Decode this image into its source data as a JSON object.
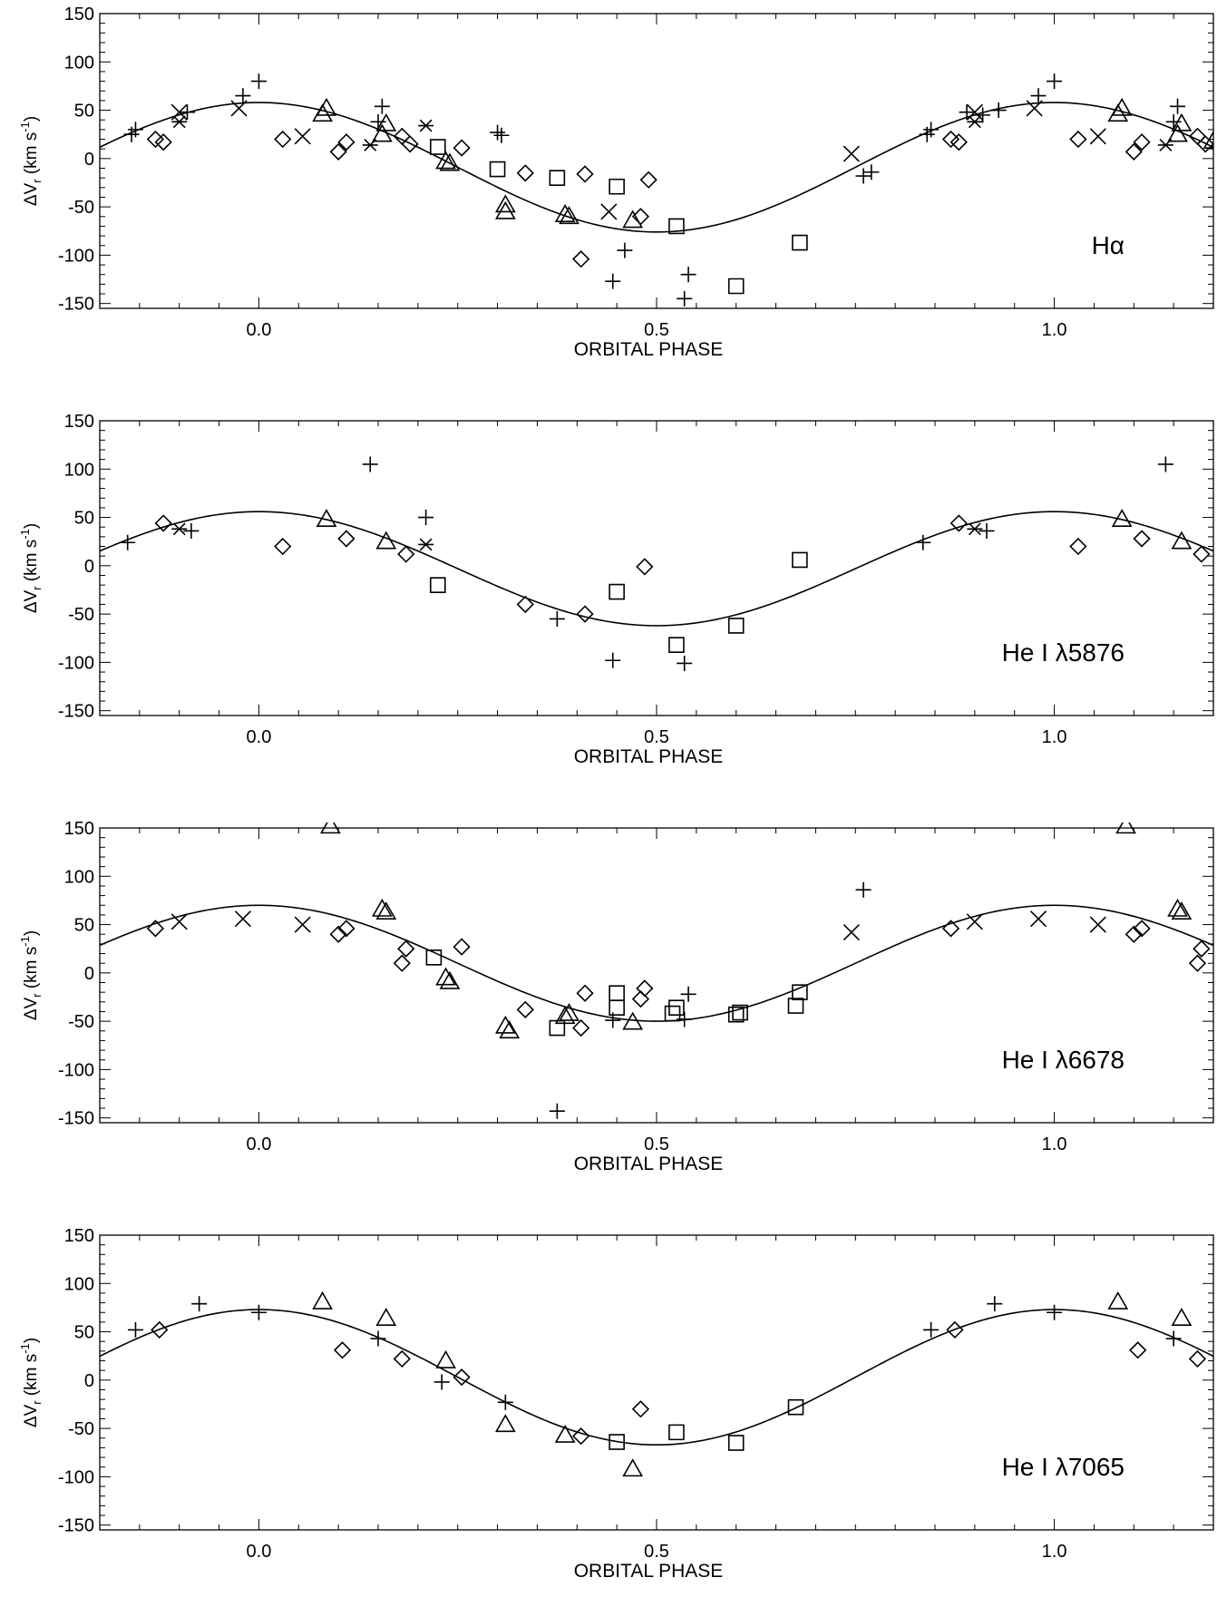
{
  "chart_data": [
    {
      "type": "scatter",
      "label": "Hα",
      "xlabel": "ORBITAL PHASE",
      "ylabel": {
        "prefix": "ΔV",
        "sub": "r",
        "mid": " (km s",
        "sup": "-1",
        "suffix": ")"
      },
      "xlim": [
        -0.2,
        1.2
      ],
      "ylim": [
        -155,
        150
      ],
      "xticks": [
        0.0,
        0.5,
        1.0
      ],
      "xtick_labels": [
        "0.0",
        "0.5",
        "1.0"
      ],
      "yticks": [
        -150,
        -100,
        -50,
        0,
        50,
        100,
        150
      ],
      "ytick_labels": [
        "-150",
        "-100",
        "-50",
        "0",
        "50",
        "100",
        "150"
      ],
      "curve": {
        "gamma": -9,
        "K": 67
      },
      "series": [
        {
          "marker": "plus",
          "x": [
            -0.16,
            -0.155,
            -0.09,
            -0.02,
            0.0,
            0.15,
            0.155,
            0.3,
            0.305,
            0.445,
            0.46,
            0.535,
            0.54,
            0.76,
            0.77,
            0.84,
            0.845,
            0.89,
            0.91,
            0.93,
            0.98,
            1.0,
            1.15,
            1.155
          ],
          "y": [
            25,
            30,
            48,
            65,
            80,
            38,
            54,
            27,
            24,
            -127,
            -95,
            -145,
            -120,
            -18,
            -14,
            25,
            30,
            48,
            45,
            50,
            65,
            80,
            38,
            54
          ]
        },
        {
          "marker": "cross",
          "x": [
            -0.1,
            -0.025,
            0.055,
            0.44,
            0.745,
            0.9,
            0.975,
            1.055
          ],
          "y": [
            48,
            52,
            23,
            -55,
            5,
            48,
            52,
            23
          ]
        },
        {
          "marker": "asterisk",
          "x": [
            -0.1,
            0.14,
            0.21,
            0.9,
            1.14
          ],
          "y": [
            38,
            14,
            34,
            38,
            14
          ]
        },
        {
          "marker": "diamond",
          "x": [
            -0.13,
            -0.12,
            0.03,
            0.1,
            0.11,
            0.18,
            0.19,
            0.255,
            0.335,
            0.405,
            0.41,
            0.48,
            0.49,
            0.87,
            0.88,
            1.03,
            1.1,
            1.11,
            1.18,
            1.19
          ],
          "y": [
            20,
            17,
            20,
            7,
            17,
            23,
            15,
            11,
            -15,
            -104,
            -16,
            -60,
            -22,
            20,
            17,
            20,
            7,
            17,
            23,
            15
          ]
        },
        {
          "marker": "triangle",
          "x": [
            0.08,
            0.085,
            0.155,
            0.16,
            0.235,
            0.24,
            0.31,
            0.31,
            0.385,
            0.39,
            0.47,
            1.08,
            1.085,
            1.155,
            1.16,
            1.2
          ],
          "y": [
            46,
            52,
            25,
            36,
            -3,
            -5,
            -48,
            -55,
            -58,
            -60,
            -64,
            46,
            52,
            25,
            36,
            18
          ]
        },
        {
          "marker": "square",
          "x": [
            0.225,
            0.3,
            0.375,
            0.45,
            0.525,
            0.6,
            0.68
          ],
          "y": [
            12,
            -11,
            -20,
            -29,
            -70,
            -132,
            -87
          ]
        }
      ]
    },
    {
      "type": "scatter",
      "label": "He I λ5876",
      "xlabel": "ORBITAL PHASE",
      "ylabel": {
        "prefix": "ΔV",
        "sub": "r",
        "mid": " (km s",
        "sup": "-1",
        "suffix": ")"
      },
      "xlim": [
        -0.2,
        1.2
      ],
      "ylim": [
        -155,
        150
      ],
      "xticks": [
        0.0,
        0.5,
        1.0
      ],
      "xtick_labels": [
        "0.0",
        "0.5",
        "1.0"
      ],
      "yticks": [
        -150,
        -100,
        -50,
        0,
        50,
        100,
        150
      ],
      "ytick_labels": [
        "-150",
        "-100",
        "-50",
        "0",
        "50",
        "100",
        "150"
      ],
      "curve": {
        "gamma": -3,
        "K": 59
      },
      "series": [
        {
          "marker": "plus",
          "x": [
            -0.165,
            -0.085,
            0.14,
            0.21,
            0.375,
            0.445,
            0.535,
            0.835,
            0.915,
            1.14
          ],
          "y": [
            24,
            36,
            105,
            50,
            -55,
            -98,
            -101,
            24,
            36,
            105
          ]
        },
        {
          "marker": "asterisk",
          "x": [
            -0.1,
            0.21,
            0.9
          ],
          "y": [
            38,
            22,
            38
          ]
        },
        {
          "marker": "diamond",
          "x": [
            -0.12,
            0.03,
            0.11,
            0.185,
            0.335,
            0.41,
            0.485,
            0.88,
            1.03,
            1.11,
            1.185
          ],
          "y": [
            44,
            20,
            28,
            12,
            -40,
            -50,
            -1,
            44,
            20,
            28,
            12
          ]
        },
        {
          "marker": "triangle",
          "x": [
            0.085,
            0.16,
            1.085,
            1.16
          ],
          "y": [
            48,
            25,
            48,
            25
          ]
        },
        {
          "marker": "square",
          "x": [
            0.225,
            0.45,
            0.525,
            0.6,
            0.68
          ],
          "y": [
            -20,
            -27,
            -82,
            -62,
            6
          ]
        }
      ]
    },
    {
      "type": "scatter",
      "label": "He I λ6678",
      "xlabel": "ORBITAL PHASE",
      "ylabel": {
        "prefix": "ΔV",
        "sub": "r",
        "mid": " (km s",
        "sup": "-1",
        "suffix": ")"
      },
      "xlim": [
        -0.2,
        1.2
      ],
      "ylim": [
        -155,
        150
      ],
      "xticks": [
        0.0,
        0.5,
        1.0
      ],
      "xtick_labels": [
        "0.0",
        "0.5",
        "1.0"
      ],
      "yticks": [
        -150,
        -100,
        -50,
        0,
        50,
        100,
        150
      ],
      "ytick_labels": [
        "-150",
        "-100",
        "-50",
        "0",
        "50",
        "100",
        "150"
      ],
      "curve": {
        "gamma": 10,
        "K": 60
      },
      "series": [
        {
          "marker": "plus",
          "x": [
            0.375,
            0.445,
            0.535,
            0.54,
            0.76
          ],
          "y": [
            -143,
            -49,
            -48,
            -22,
            86
          ]
        },
        {
          "marker": "cross",
          "x": [
            -0.1,
            -0.02,
            0.055,
            0.745,
            0.9,
            0.98,
            1.055
          ],
          "y": [
            53,
            56,
            50,
            42,
            53,
            56,
            50
          ]
        },
        {
          "marker": "diamond",
          "x": [
            -0.13,
            0.1,
            0.11,
            0.18,
            0.185,
            0.255,
            0.335,
            0.405,
            0.41,
            0.48,
            0.485,
            0.87,
            1.1,
            1.11,
            1.18,
            1.185
          ],
          "y": [
            46,
            40,
            46,
            10,
            25,
            27,
            -38,
            -57,
            -21,
            -27,
            -16,
            46,
            40,
            46,
            10,
            25
          ]
        },
        {
          "marker": "triangle",
          "x": [
            0.09,
            0.155,
            0.16,
            0.235,
            0.24,
            0.31,
            0.315,
            0.385,
            0.39,
            0.47,
            1.09,
            1.155,
            1.16
          ],
          "y": [
            152,
            66,
            63,
            -5,
            -9,
            -55,
            -60,
            -45,
            -42,
            -51,
            152,
            66,
            63
          ]
        },
        {
          "marker": "square",
          "x": [
            0.22,
            0.375,
            0.45,
            0.45,
            0.52,
            0.525,
            0.6,
            0.605,
            0.675,
            0.68
          ],
          "y": [
            16,
            -57,
            -21,
            -36,
            -42,
            -36,
            -43,
            -41,
            -34,
            -20
          ]
        }
      ]
    },
    {
      "type": "scatter",
      "label": "He I λ7065",
      "xlabel": "ORBITAL PHASE",
      "ylabel": {
        "prefix": "ΔV",
        "sub": "r",
        "mid": " (km s",
        "sup": "-1",
        "suffix": ")"
      },
      "xlim": [
        -0.2,
        1.2
      ],
      "ylim": [
        -155,
        150
      ],
      "xticks": [
        0.0,
        0.5,
        1.0
      ],
      "xtick_labels": [
        "0.0",
        "0.5",
        "1.0"
      ],
      "yticks": [
        -150,
        -100,
        -50,
        0,
        50,
        100,
        150
      ],
      "ytick_labels": [
        "-150",
        "-100",
        "-50",
        "0",
        "50",
        "100",
        "150"
      ],
      "curve": {
        "gamma": 3,
        "K": 70
      },
      "series": [
        {
          "marker": "plus",
          "x": [
            -0.155,
            -0.075,
            0.0,
            0.15,
            0.23,
            0.31,
            0.845,
            0.925,
            1.0,
            1.15
          ],
          "y": [
            52,
            79,
            70,
            43,
            -2,
            -23,
            52,
            79,
            70,
            43
          ]
        },
        {
          "marker": "diamond",
          "x": [
            -0.125,
            0.105,
            0.18,
            0.255,
            0.405,
            0.48,
            0.875,
            1.105,
            1.18
          ],
          "y": [
            52,
            31,
            22,
            3,
            -58,
            -30,
            52,
            31,
            22
          ]
        },
        {
          "marker": "triangle",
          "x": [
            0.08,
            0.16,
            0.235,
            0.31,
            0.385,
            0.47,
            1.08,
            1.16
          ],
          "y": [
            81,
            64,
            20,
            -46,
            -57,
            -92,
            81,
            64
          ]
        },
        {
          "marker": "square",
          "x": [
            0.45,
            0.525,
            0.6,
            0.675
          ],
          "y": [
            -64,
            -54,
            -65,
            -28
          ]
        }
      ]
    }
  ]
}
